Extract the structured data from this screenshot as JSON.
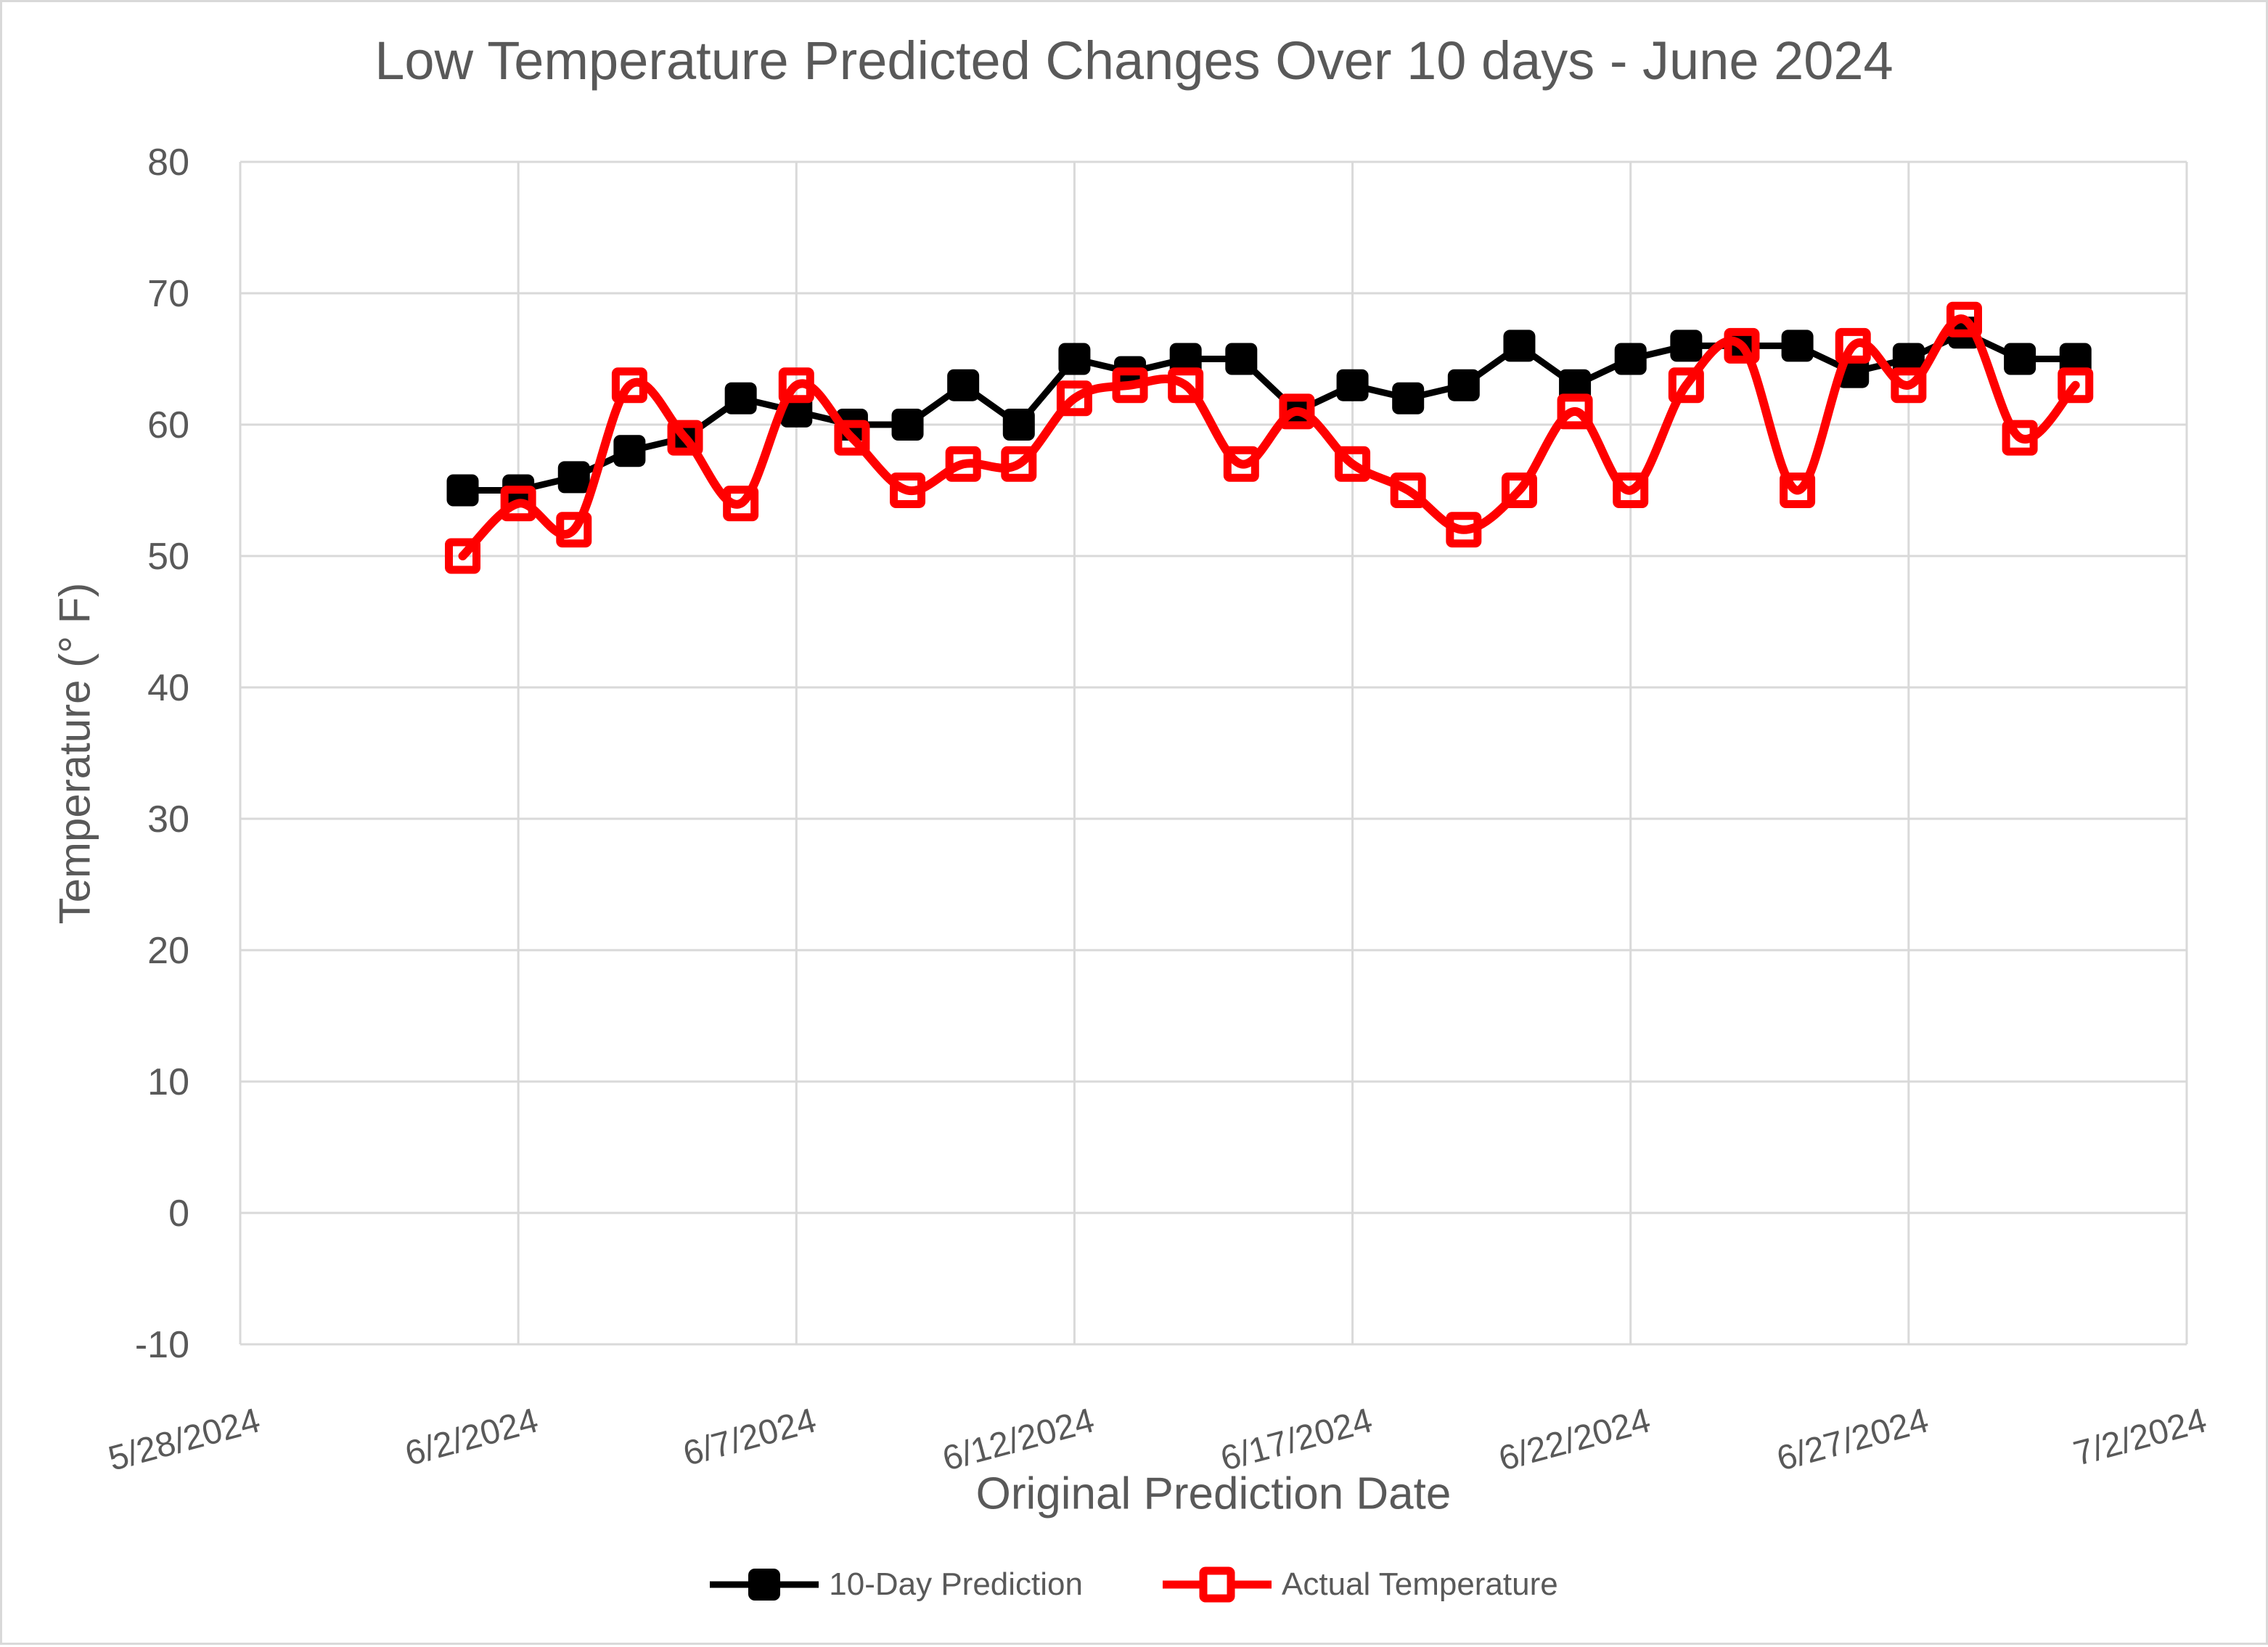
{
  "chart_data": {
    "type": "line",
    "title": "Low Temperature Predicted Changes Over 10 days - June 2024",
    "xlabel": "Original Prediction Date",
    "ylabel": "Temperature (° F)",
    "x_tick_labels": [
      "5/28/2024",
      "6/2/2024",
      "6/7/2024",
      "6/12/2024",
      "6/17/2024",
      "6/22/2024",
      "6/27/2024",
      "7/2/2024"
    ],
    "y_tick_labels": [
      "80",
      "70",
      "60",
      "50",
      "40",
      "30",
      "20",
      "10",
      "0",
      "-10"
    ],
    "xlim": [
      "5/28/2024",
      "7/2/2024"
    ],
    "ylim": [
      -10,
      80
    ],
    "grid": true,
    "legend_position": "bottom-center",
    "text_color": "#595959",
    "gridline_color": "#d9d9d9",
    "x": [
      "6/1/2024",
      "6/2/2024",
      "6/3/2024",
      "6/4/2024",
      "6/5/2024",
      "6/6/2024",
      "6/7/2024",
      "6/8/2024",
      "6/9/2024",
      "6/10/2024",
      "6/11/2024",
      "6/12/2024",
      "6/13/2024",
      "6/14/2024",
      "6/15/2024",
      "6/16/2024",
      "6/17/2024",
      "6/18/2024",
      "6/19/2024",
      "6/20/2024",
      "6/21/2024",
      "6/22/2024",
      "6/23/2024",
      "6/24/2024",
      "6/25/2024",
      "6/26/2024",
      "6/27/2024",
      "6/28/2024",
      "6/29/2024",
      "6/30/2024"
    ],
    "series": [
      {
        "name": "10-Day Prediction",
        "color": "#000000",
        "marker": "filled-square",
        "line_style": "straight",
        "values": [
          55,
          55,
          56,
          58,
          59,
          62,
          61,
          60,
          60,
          63,
          60,
          65,
          64,
          65,
          65,
          61,
          63,
          62,
          63,
          66,
          63,
          65,
          66,
          66,
          66,
          64,
          65,
          67,
          65,
          65
        ]
      },
      {
        "name": "Actual Temperature",
        "color": "#ff0000",
        "marker": "open-square",
        "line_style": "smooth",
        "values": [
          50,
          54,
          52,
          63,
          59,
          54,
          63,
          59,
          55,
          57,
          57,
          62,
          63,
          63,
          57,
          61,
          57,
          55,
          52,
          55,
          61,
          55,
          63,
          66,
          55,
          66,
          63,
          68,
          59,
          63
        ]
      }
    ]
  }
}
